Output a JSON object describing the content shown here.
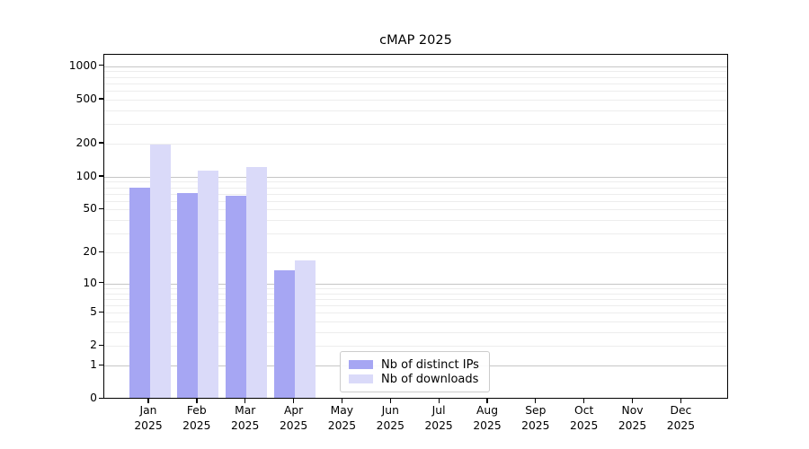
{
  "chart_data": {
    "type": "bar",
    "title": "cMAP 2025",
    "categories": [
      "Jan\n2025",
      "Feb\n2025",
      "Mar\n2025",
      "Apr\n2025",
      "May\n2025",
      "Jun\n2025",
      "Jul\n2025",
      "Aug\n2025",
      "Sep\n2025",
      "Oct\n2025",
      "Nov\n2025",
      "Dec\n2025"
    ],
    "series": [
      {
        "name": "Nb of distinct IPs",
        "color": "#a6a6f3",
        "values": [
          76,
          68,
          65,
          13,
          0,
          0,
          0,
          0,
          0,
          0,
          0,
          0
        ]
      },
      {
        "name": "Nb of downloads",
        "color": "#dadaf9",
        "values": [
          190,
          110,
          119,
          16,
          0,
          0,
          0,
          0,
          0,
          0,
          0,
          0
        ]
      }
    ],
    "y_axis": {
      "scale": "log(1+x)",
      "tick_values": [
        1000,
        500,
        200,
        100,
        50,
        20,
        10,
        5,
        2,
        1,
        0
      ],
      "tick_labels": [
        "1000",
        "500",
        "200",
        "100",
        "50",
        "20",
        "10",
        "5",
        "2",
        "1",
        "0"
      ],
      "ylim": [
        0,
        1270
      ]
    },
    "grid": true,
    "legend_position": "lower center"
  }
}
